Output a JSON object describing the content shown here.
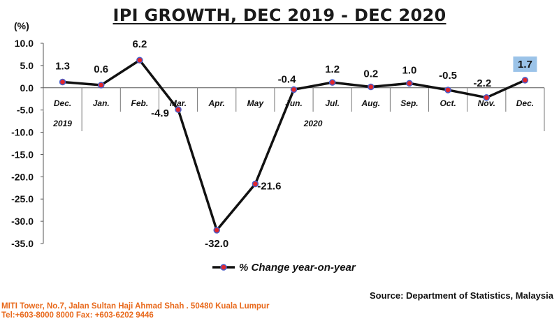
{
  "chart_data": {
    "type": "line",
    "title": "IPI GROWTH, DEC 2019 - DEC 2020",
    "unit_label": "(%)",
    "categories": [
      "Dec.",
      "Jan.",
      "Feb.",
      "Mar.",
      "Apr.",
      "May",
      "Jun.",
      "Jul.",
      "Aug.",
      "Sep.",
      "Oct.",
      "Nov.",
      "Dec."
    ],
    "category_groups": [
      {
        "label": "2019",
        "from": 0,
        "to": 0
      },
      {
        "label": "2020",
        "from": 1,
        "to": 12
      }
    ],
    "series": [
      {
        "name": "% Change year-on-year",
        "values": [
          1.3,
          0.6,
          6.2,
          -4.9,
          -32.0,
          -21.6,
          -0.4,
          1.2,
          0.2,
          1.0,
          -0.5,
          -2.2,
          1.7
        ],
        "labels": [
          "1.3",
          "0.6",
          "6.2",
          "-4.9",
          "-32.0",
          "-21.6",
          "-0.4",
          "1.2",
          "0.2",
          "1.0",
          "-0.5",
          "-2.2",
          "1.7"
        ],
        "line_color": "#111111",
        "marker_color": "#e0262c",
        "marker_edge": "#4a5ec8"
      }
    ],
    "highlight_index": 12,
    "highlight_color": "#9bc3e8",
    "ylim": [
      -35.0,
      10.0
    ],
    "yticks": [
      "10.0",
      "5.0",
      "0.0",
      "-5.0",
      "-10.0",
      "-15.0",
      "-20.0",
      "-25.0",
      "-30.0",
      "-35.0"
    ],
    "ytick_values": [
      10,
      5,
      0,
      -5,
      -10,
      -15,
      -20,
      -25,
      -30,
      -35
    ],
    "grid": false,
    "legend_position": "bottom-center"
  },
  "source": "Source:   Department of Statistics, Malaysia",
  "footer": {
    "address": "MITI Tower, No.7, Jalan Sultan Haji Ahmad Shah . 50480 Kuala Lumpur",
    "contact": "Tel:+603-8000 8000 Fax: +603-6202 9446"
  }
}
